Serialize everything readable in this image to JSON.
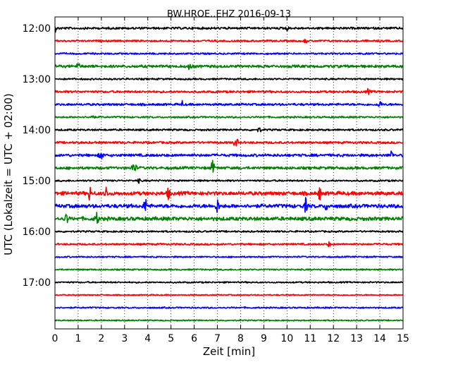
{
  "chart_data": {
    "type": "line",
    "title": "BW.HROE..EHZ 2016-09-13",
    "xlabel": "Zeit  [min]",
    "ylabel": "UTC (Lokalzeit = UTC + 02:00)",
    "xlim": [
      0,
      15
    ],
    "x_ticks": [
      "0",
      "1",
      "2",
      "3",
      "4",
      "5",
      "6",
      "7",
      "8",
      "9",
      "10",
      "11",
      "12",
      "13",
      "14",
      "15"
    ],
    "y_tick_labels": [
      "12:00",
      "13:00",
      "14:00",
      "15:00",
      "16:00",
      "17:00"
    ],
    "grid": "vertical dotted",
    "trace_interval_min": 15,
    "trace_colors": [
      "#000000",
      "#ff0000",
      "#0000ff",
      "#008000"
    ],
    "series": [
      {
        "start": "12:00",
        "color": "#000000",
        "amplitude": 0.18,
        "events": [
          [
            0.0,
            0.5,
            0.05
          ],
          [
            10.0,
            0.3,
            0.06
          ]
        ]
      },
      {
        "start": "12:15",
        "color": "#ff0000",
        "amplitude": 0.15,
        "events": [
          [
            10.8,
            0.3,
            0.06
          ]
        ]
      },
      {
        "start": "12:30",
        "color": "#0000ff",
        "amplitude": 0.14,
        "events": []
      },
      {
        "start": "12:45",
        "color": "#008000",
        "amplitude": 0.22,
        "events": [
          [
            1.0,
            0.35,
            0.08
          ],
          [
            5.8,
            0.45,
            0.08
          ]
        ]
      },
      {
        "start": "13:00",
        "color": "#000000",
        "amplitude": 0.14,
        "events": []
      },
      {
        "start": "13:15",
        "color": "#ff0000",
        "amplitude": 0.18,
        "events": [
          [
            13.5,
            0.35,
            0.06
          ]
        ]
      },
      {
        "start": "13:30",
        "color": "#0000ff",
        "amplitude": 0.18,
        "events": [
          [
            5.5,
            0.9,
            0.03
          ],
          [
            14.0,
            0.4,
            0.08
          ]
        ]
      },
      {
        "start": "13:45",
        "color": "#008000",
        "amplitude": 0.14,
        "events": [
          [
            1.6,
            0.3,
            0.08
          ]
        ]
      },
      {
        "start": "14:00",
        "color": "#000000",
        "amplitude": 0.15,
        "events": [
          [
            8.8,
            0.3,
            0.08
          ]
        ]
      },
      {
        "start": "14:15",
        "color": "#ff0000",
        "amplitude": 0.18,
        "events": [
          [
            7.8,
            0.5,
            0.1
          ]
        ]
      },
      {
        "start": "14:30",
        "color": "#0000ff",
        "amplitude": 0.22,
        "events": [
          [
            2.0,
            0.4,
            0.1
          ],
          [
            14.5,
            0.7,
            0.05
          ]
        ]
      },
      {
        "start": "14:45",
        "color": "#008000",
        "amplitude": 0.22,
        "events": [
          [
            3.4,
            0.6,
            0.1
          ],
          [
            6.8,
            0.9,
            0.07
          ]
        ]
      },
      {
        "start": "15:00",
        "color": "#000000",
        "amplitude": 0.14,
        "events": [
          [
            3.6,
            0.3,
            0.06
          ]
        ]
      },
      {
        "start": "15:15",
        "color": "#ff0000",
        "amplitude": 0.3,
        "events": [
          [
            1.5,
            1.1,
            0.05
          ],
          [
            2.2,
            1.0,
            0.05
          ],
          [
            4.9,
            1.0,
            0.05
          ],
          [
            11.4,
            1.0,
            0.05
          ]
        ]
      },
      {
        "start": "15:30",
        "color": "#0000ff",
        "amplitude": 0.3,
        "events": [
          [
            3.9,
            0.9,
            0.07
          ],
          [
            7.0,
            1.0,
            0.06
          ],
          [
            10.8,
            1.0,
            0.06
          ],
          [
            11.7,
            0.9,
            0.04
          ]
        ]
      },
      {
        "start": "15:45",
        "color": "#008000",
        "amplitude": 0.3,
        "events": [
          [
            0.5,
            0.9,
            0.05
          ],
          [
            1.8,
            0.7,
            0.08
          ]
        ]
      },
      {
        "start": "16:00",
        "color": "#000000",
        "amplitude": 0.14,
        "events": []
      },
      {
        "start": "16:15",
        "color": "#ff0000",
        "amplitude": 0.15,
        "events": [
          [
            11.8,
            0.3,
            0.06
          ]
        ]
      },
      {
        "start": "16:30",
        "color": "#0000ff",
        "amplitude": 0.12,
        "events": []
      },
      {
        "start": "16:45",
        "color": "#008000",
        "amplitude": 0.12,
        "events": []
      },
      {
        "start": "17:00",
        "color": "#000000",
        "amplitude": 0.12,
        "events": []
      },
      {
        "start": "17:15",
        "color": "#ff0000",
        "amplitude": 0.1,
        "events": []
      },
      {
        "start": "17:30",
        "color": "#0000ff",
        "amplitude": 0.12,
        "events": []
      },
      {
        "start": "17:45",
        "color": "#008000",
        "amplitude": 0.1,
        "events": []
      }
    ]
  }
}
